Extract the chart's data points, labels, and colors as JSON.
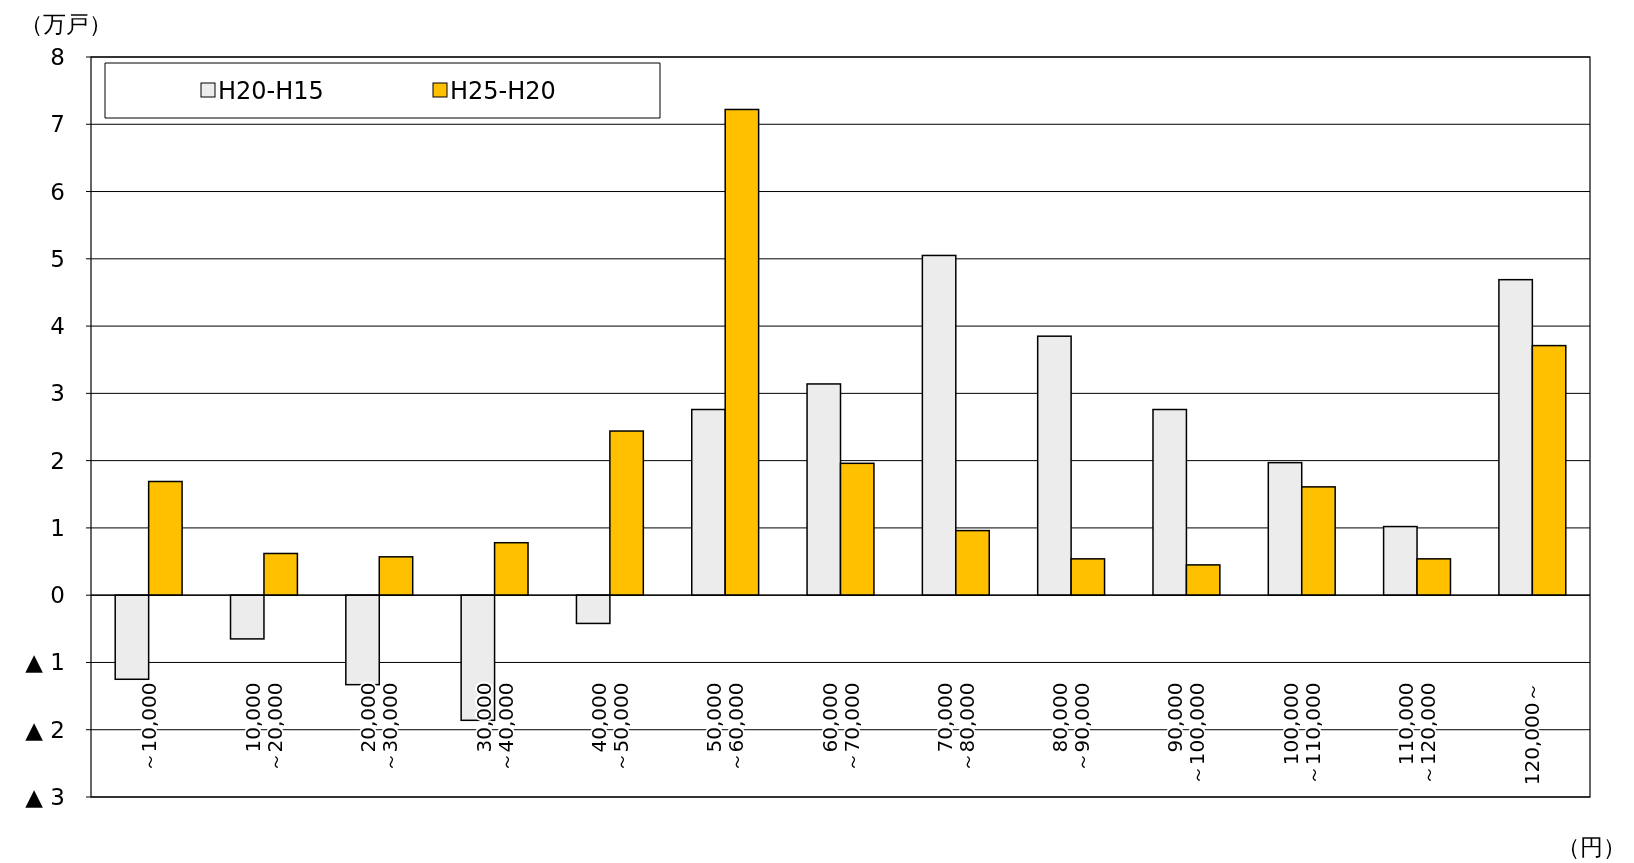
{
  "chart_data": {
    "type": "bar",
    "ylabel": "（万戸）",
    "xlabel": "（円）",
    "categories": [
      "～10,000",
      "10,000\n～20,000",
      "20,000\n～30,000",
      "30,000\n～40,000",
      "40,000\n～50,000",
      "50,000\n～60,000",
      "60,000\n～70,000",
      "70,000\n～80,000",
      "80,000\n～90,000",
      "90,000\n～100,000",
      "100,000\n～110,000",
      "110,000\n～120,000",
      "120,000～"
    ],
    "series": [
      {
        "name": "H20-H15",
        "color": "#ececec",
        "values": [
          -1.25,
          -0.65,
          -1.33,
          -1.86,
          -0.42,
          2.76,
          3.14,
          5.05,
          3.85,
          2.76,
          1.97,
          1.02,
          4.69
        ]
      },
      {
        "name": "H25-H20",
        "color": "#ffc000",
        "values": [
          1.69,
          0.62,
          0.57,
          0.78,
          2.44,
          7.22,
          1.96,
          0.96,
          0.54,
          0.45,
          1.61,
          0.54,
          3.71
        ]
      }
    ],
    "ylim": [
      -3,
      8
    ],
    "yticks": [
      {
        "value": -3,
        "label": "▲ 3"
      },
      {
        "value": -2,
        "label": "▲ 2"
      },
      {
        "value": -1,
        "label": "▲ 1"
      },
      0,
      1,
      2,
      3,
      4,
      5,
      6,
      7,
      8
    ],
    "grid": "y",
    "legend": "top left"
  }
}
